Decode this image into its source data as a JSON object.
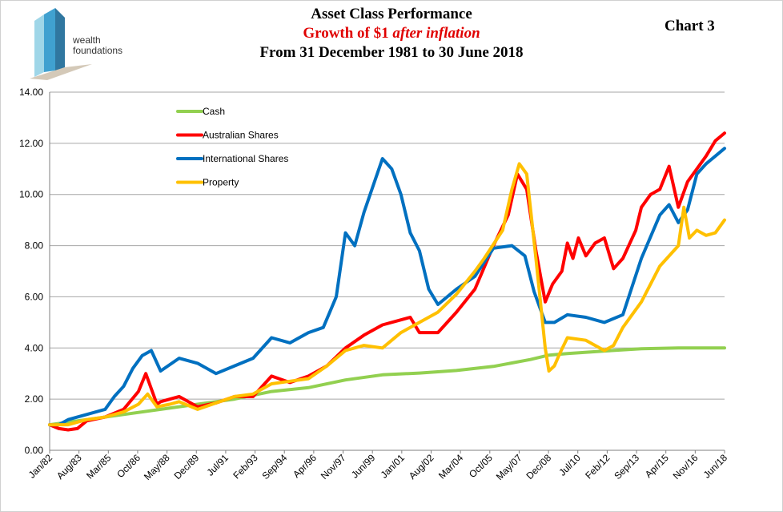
{
  "chart_data": {
    "type": "line",
    "title": "Asset Class Performance",
    "subtitle": "Growth of $1",
    "subtitle_italic": "after inflation",
    "period": "From 31 December 1981 to 30 June 2018",
    "chart_label": "Chart 3",
    "ylim": [
      0,
      14
    ],
    "yticks": [
      "0.00",
      "2.00",
      "4.00",
      "6.00",
      "8.00",
      "10.00",
      "12.00",
      "14.00"
    ],
    "xticks": [
      "Jan/82",
      "Aug/83",
      "Mar/85",
      "Oct/86",
      "May/88",
      "Dec/89",
      "Jul/91",
      "Feb/93",
      "Sep/94",
      "Apr/96",
      "Nov/97",
      "Jun/99",
      "Jan/01",
      "Aug/02",
      "Mar/04",
      "Oct/05",
      "May/07",
      "Dec/08",
      "Jul/10",
      "Feb/12",
      "Sep/13",
      "Apr/15",
      "Nov/16",
      "Jun/18"
    ],
    "grid": "horizontal",
    "legend_position": "top-left",
    "series": [
      {
        "name": "Cash",
        "color": "#92d050",
        "x": [
          1982.0,
          1984.0,
          1986.0,
          1988.0,
          1990.0,
          1992.0,
          1994.0,
          1996.0,
          1998.0,
          2000.0,
          2002.0,
          2004.0,
          2006.0,
          2008.0,
          2009.0,
          2010.0,
          2012.0,
          2014.0,
          2016.0,
          2018.5
        ],
        "y": [
          1.0,
          1.2,
          1.4,
          1.6,
          1.8,
          2.0,
          2.3,
          2.45,
          2.75,
          2.95,
          3.02,
          3.12,
          3.28,
          3.55,
          3.72,
          3.78,
          3.88,
          3.97,
          4.0,
          4.0
        ]
      },
      {
        "name": "Australian Shares",
        "color": "#ff0000",
        "x": [
          1982.0,
          1982.5,
          1983.0,
          1983.5,
          1984.0,
          1985.0,
          1986.0,
          1986.8,
          1987.2,
          1987.8,
          1988.0,
          1989.0,
          1990.0,
          1991.0,
          1992.0,
          1993.0,
          1994.0,
          1995.0,
          1996.0,
          1997.0,
          1998.0,
          1999.0,
          2000.0,
          2001.0,
          2001.5,
          2002.0,
          2003.0,
          2004.0,
          2005.0,
          2006.0,
          2006.8,
          2007.3,
          2007.8,
          2008.3,
          2008.8,
          2009.2,
          2009.7,
          2010.0,
          2010.3,
          2010.6,
          2011.0,
          2011.5,
          2012.0,
          2012.5,
          2013.0,
          2013.7,
          2014.0,
          2014.5,
          2015.0,
          2015.5,
          2016.0,
          2016.5,
          2017.0,
          2017.5,
          2018.0,
          2018.5
        ],
        "y": [
          1.0,
          0.85,
          0.8,
          0.85,
          1.15,
          1.3,
          1.6,
          2.3,
          3.0,
          1.8,
          1.9,
          2.1,
          1.7,
          1.85,
          2.1,
          2.1,
          2.9,
          2.65,
          2.9,
          3.3,
          4.0,
          4.5,
          4.9,
          5.1,
          5.2,
          4.6,
          4.6,
          5.4,
          6.3,
          8.0,
          9.2,
          10.8,
          10.2,
          7.8,
          5.8,
          6.5,
          7.0,
          8.1,
          7.5,
          8.3,
          7.6,
          8.1,
          8.3,
          7.1,
          7.5,
          8.6,
          9.5,
          10.0,
          10.2,
          11.1,
          9.5,
          10.5,
          11.0,
          11.5,
          12.1,
          12.4
        ]
      },
      {
        "name": "International Shares",
        "color": "#0070c0",
        "x": [
          1982.0,
          1982.5,
          1983.0,
          1984.0,
          1985.0,
          1985.5,
          1986.0,
          1986.5,
          1987.0,
          1987.5,
          1988.0,
          1989.0,
          1990.0,
          1991.0,
          1992.0,
          1993.0,
          1994.0,
          1995.0,
          1996.0,
          1996.8,
          1997.5,
          1998.0,
          1998.5,
          1999.0,
          2000.0,
          2000.5,
          2001.0,
          2001.5,
          2002.0,
          2002.5,
          2003.0,
          2004.0,
          2005.0,
          2006.0,
          2007.0,
          2007.7,
          2008.2,
          2008.8,
          2009.3,
          2010.0,
          2011.0,
          2012.0,
          2013.0,
          2014.0,
          2015.0,
          2015.5,
          2016.0,
          2016.5,
          2017.0,
          2017.5,
          2018.0,
          2018.5
        ],
        "y": [
          1.0,
          1.0,
          1.2,
          1.4,
          1.6,
          2.1,
          2.5,
          3.2,
          3.7,
          3.9,
          3.1,
          3.6,
          3.4,
          3.0,
          3.3,
          3.6,
          4.4,
          4.2,
          4.6,
          4.8,
          6.0,
          8.5,
          8.0,
          9.3,
          11.4,
          11.0,
          10.0,
          8.5,
          7.8,
          6.3,
          5.7,
          6.3,
          6.8,
          7.9,
          8.0,
          7.6,
          6.2,
          5.0,
          5.0,
          5.3,
          5.2,
          5.0,
          5.3,
          7.5,
          9.2,
          9.6,
          8.9,
          9.4,
          10.8,
          11.2,
          11.5,
          11.8
        ]
      },
      {
        "name": "Property",
        "color": "#ffc000",
        "x": [
          1982.0,
          1983.0,
          1984.0,
          1985.0,
          1986.0,
          1986.8,
          1987.3,
          1987.8,
          1988.5,
          1989.0,
          1990.0,
          1991.0,
          1992.0,
          1993.0,
          1994.0,
          1995.0,
          1996.0,
          1997.0,
          1998.0,
          1999.0,
          2000.0,
          2001.0,
          2002.0,
          2003.0,
          2004.0,
          2005.0,
          2005.5,
          2006.5,
          2007.0,
          2007.4,
          2007.8,
          2008.3,
          2008.8,
          2009.0,
          2009.3,
          2009.6,
          2010.0,
          2011.0,
          2012.0,
          2012.5,
          2013.0,
          2014.0,
          2015.0,
          2016.0,
          2016.3,
          2016.6,
          2017.0,
          2017.5,
          2018.0,
          2018.5
        ],
        "y": [
          1.0,
          1.0,
          1.2,
          1.3,
          1.5,
          1.8,
          2.2,
          1.7,
          1.8,
          1.9,
          1.6,
          1.85,
          2.1,
          2.2,
          2.6,
          2.7,
          2.8,
          3.3,
          3.9,
          4.1,
          4.0,
          4.6,
          5.0,
          5.4,
          6.1,
          7.0,
          7.5,
          8.6,
          10.2,
          11.2,
          10.8,
          7.5,
          4.0,
          3.1,
          3.3,
          3.8,
          4.4,
          4.3,
          3.9,
          4.1,
          4.8,
          5.8,
          7.2,
          8.0,
          9.5,
          8.3,
          8.6,
          8.4,
          8.5,
          9.0
        ]
      }
    ]
  }
}
